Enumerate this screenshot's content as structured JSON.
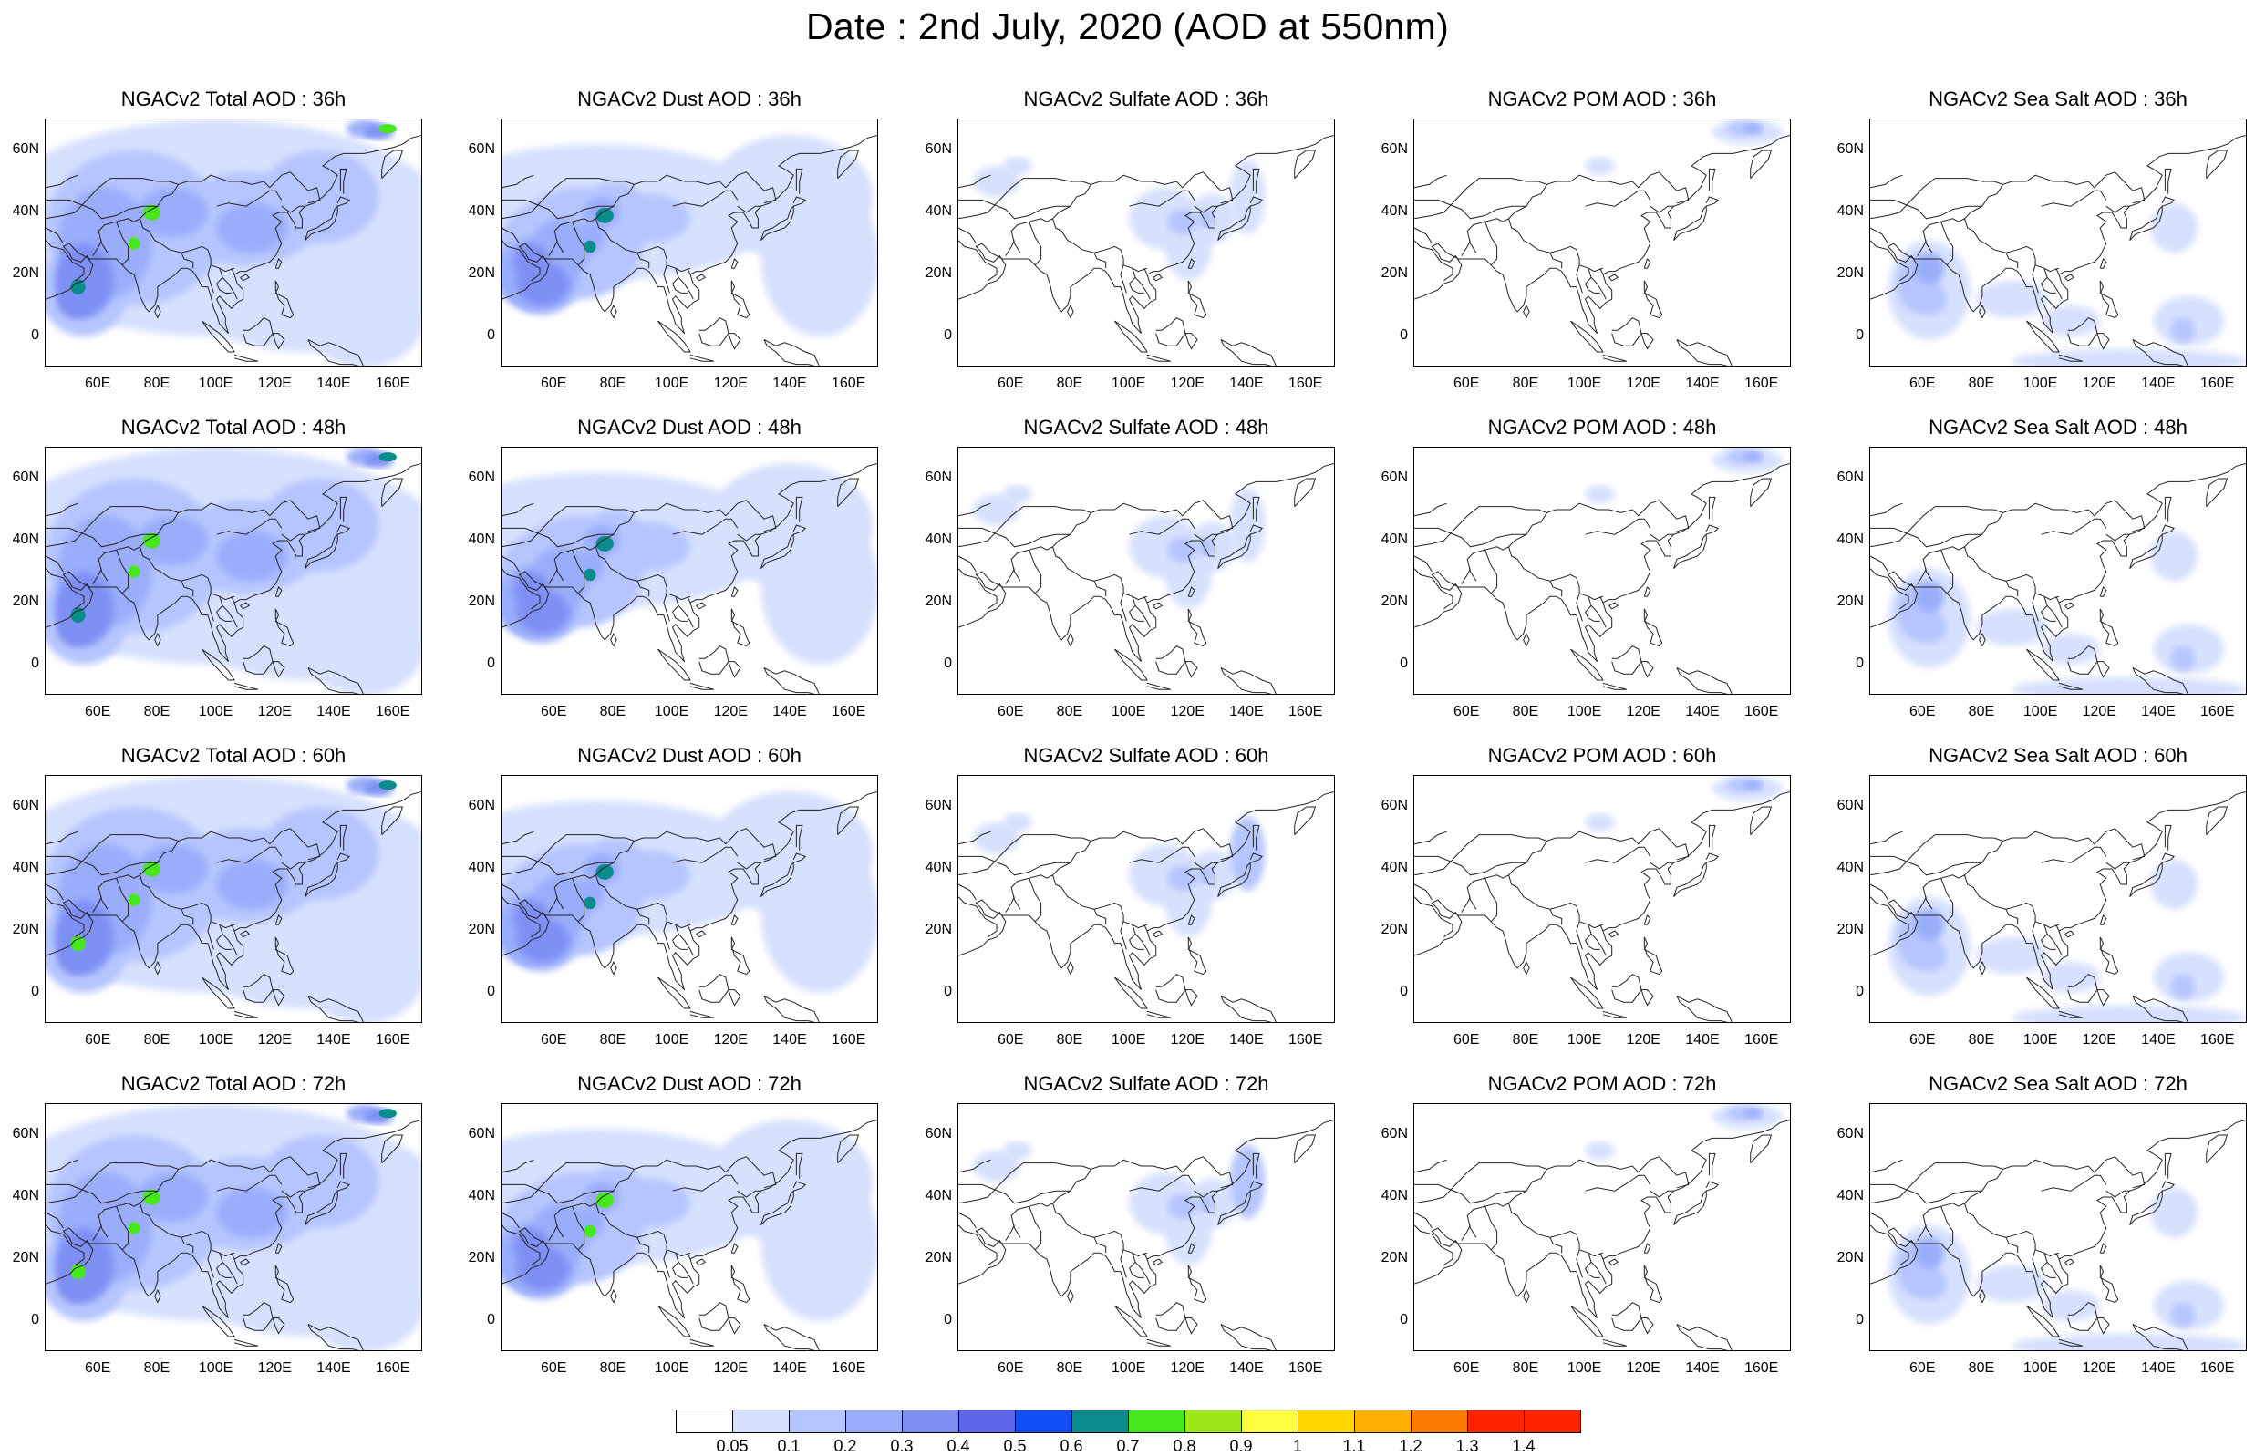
{
  "title": "Date : 2nd July, 2020 (AOD at 550nm)",
  "rows": [
    {
      "hour": "36h",
      "titles": [
        "NGACv2 Total AOD : 36h",
        "NGACv2 Dust AOD : 36h",
        "NGACv2 Sulfate AOD : 36h",
        "NGACv2 POM AOD : 36h",
        "NGACv2 Sea Salt AOD : 36h"
      ]
    },
    {
      "hour": "48h",
      "titles": [
        "NGACv2 Total AOD : 48h",
        "NGACv2 Dust AOD : 48h",
        "NGACv2 Sulfate AOD : 48h",
        "NGACv2 POM AOD : 48h",
        "NGACv2 Sea Salt AOD : 48h"
      ]
    },
    {
      "hour": "60h",
      "titles": [
        "NGACv2 Total AOD : 60h",
        "NGACv2 Dust AOD : 60h",
        "NGACv2 Sulfate AOD : 60h",
        "NGACv2 POM AOD : 60h",
        "NGACv2 Sea Salt AOD : 60h"
      ]
    },
    {
      "hour": "72h",
      "titles": [
        "NGACv2 Total AOD : 72h",
        "NGACv2 Dust AOD : 72h",
        "NGACv2 Sulfate AOD : 72h",
        "NGACv2 POM AOD : 72h",
        "NGACv2 Sea Salt  AOD : 72h"
      ]
    }
  ],
  "axes": {
    "lat_labels": [
      "60N",
      "40N",
      "20N",
      "0"
    ],
    "lon_labels": [
      "60E",
      "80E",
      "100E",
      "120E",
      "140E",
      "160E"
    ]
  },
  "colorbar": {
    "labels": [
      "0.05",
      "0.1",
      "0.2",
      "0.3",
      "0.4",
      "0.5",
      "0.6",
      "0.7",
      "0.8",
      "0.9",
      "1",
      "1.1",
      "1.2",
      "1.3",
      "1.4"
    ],
    "colors": [
      "#ffffff",
      "#d6e0ff",
      "#b5c5ff",
      "#9aadfb",
      "#7f90f5",
      "#5d66ea",
      "#0f4ff5",
      "#0b8c8c",
      "#45e81a",
      "#9ee81a",
      "#ffff40",
      "#ffd700",
      "#ffb000",
      "#ff7a00",
      "#ff2400"
    ]
  }
}
